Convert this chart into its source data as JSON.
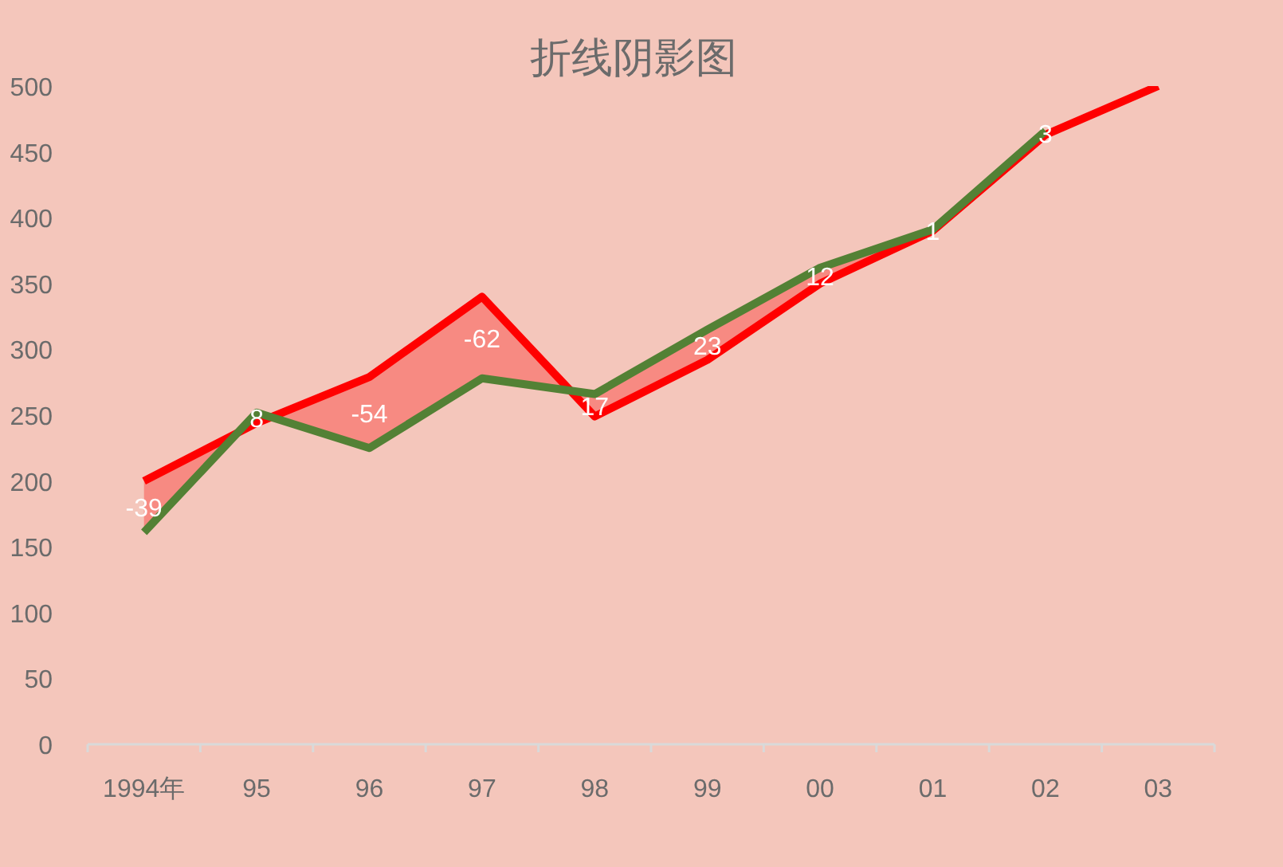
{
  "chart_data": {
    "type": "line",
    "title": "折线阴影图",
    "categories": [
      "1994年",
      "95",
      "96",
      "97",
      "98",
      "99",
      "00",
      "01",
      "02",
      "03"
    ],
    "series": [
      {
        "color": "#ff0000",
        "values": [
          200,
          244,
          279,
          340,
          249,
          292,
          350,
          390,
          463,
          500
        ],
        "lower": [
          200,
          244,
          279,
          340,
          249,
          292,
          350,
          390,
          463,
          null
        ],
        "upper": [
          161,
          252,
          225,
          278,
          266,
          315,
          362,
          391,
          466,
          null
        ]
      },
      {
        "color": "#538135",
        "values": [
          161,
          252,
          225,
          278,
          266,
          315,
          362,
          391,
          466,
          null
        ]
      }
    ],
    "ylim": [
      0,
      500
    ],
    "yticks": [
      0,
      50,
      100,
      150,
      200,
      250,
      300,
      350,
      400,
      450,
      500
    ],
    "grid": false,
    "marker": "none",
    "line_style": "solid",
    "annotations": [
      {
        "text": "-39",
        "x": "1994年",
        "y": 200
      },
      {
        "text": "8",
        "x": "95",
        "y": 244
      },
      {
        "text": "-54",
        "x": "96",
        "y": 279
      },
      {
        "text": "-62",
        "x": "97",
        "y": 340
      },
      {
        "text": "17",
        "x": "98",
        "y": 249
      },
      {
        "text": "23",
        "x": "99",
        "y": 292
      },
      {
        "text": "12",
        "x": "00",
        "y": 350
      },
      {
        "text": "1",
        "x": "01",
        "y": 390
      },
      {
        "text": "3",
        "x": "02",
        "y": 463
      }
    ]
  }
}
